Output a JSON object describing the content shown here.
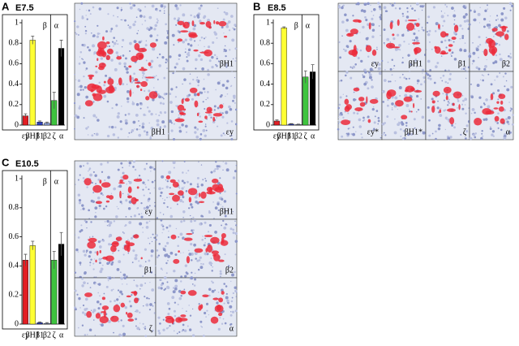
{
  "figure": {
    "panels": [
      {
        "label": "A",
        "stage": "E7.5",
        "image_labels": [
          "βH1",
          "βH1",
          "εy"
        ]
      },
      {
        "label": "B",
        "stage": "E8.5",
        "image_labels": [
          "εy",
          "βH1",
          "β1",
          "β2",
          "εy*",
          "βH1*",
          "ζ",
          "α"
        ]
      },
      {
        "label": "C",
        "stage": "E10.5",
        "image_labels": [
          "εy",
          "βH1",
          "β1",
          "β2",
          "ζ",
          "α"
        ]
      }
    ]
  },
  "chart_data": [
    {
      "type": "bar",
      "categories": [
        "εy",
        "βH1",
        "β1",
        "β2",
        "ζ",
        "α"
      ],
      "values": [
        0.09,
        0.83,
        0.03,
        0.02,
        0.24,
        0.75
      ],
      "errors": [
        0.02,
        0.04,
        0.01,
        0.01,
        0.08,
        0.08
      ],
      "colors": [
        "#e31e24",
        "#ffff33",
        "#2b3fbf",
        "#8fa5e0",
        "#3ec43e",
        "#000000"
      ],
      "annotations": [
        "β",
        "α"
      ],
      "ylim": [
        0,
        1
      ],
      "yticks": [
        0,
        0.2,
        0.4,
        0.6,
        0.8,
        1
      ]
    },
    {
      "type": "bar",
      "categories": [
        "εy",
        "βH1",
        "β1",
        "β2",
        "ζ",
        "α"
      ],
      "values": [
        0.04,
        0.95,
        0.01,
        0.005,
        0.47,
        0.52
      ],
      "errors": [
        0.01,
        0.01,
        0.005,
        0.005,
        0.06,
        0.07
      ],
      "colors": [
        "#e31e24",
        "#ffff33",
        "#2b3fbf",
        "#8fa5e0",
        "#3ec43e",
        "#000000"
      ],
      "annotations": [
        "β",
        "α"
      ],
      "ylim": [
        0,
        1
      ],
      "yticks": [
        0,
        0.2,
        0.4,
        0.6,
        0.8,
        1
      ]
    },
    {
      "type": "bar",
      "categories": [
        "εy",
        "βH1",
        "β1",
        "β2",
        "ζ",
        "α"
      ],
      "values": [
        0.44,
        0.54,
        0.01,
        0.005,
        0.44,
        0.55
      ],
      "errors": [
        0.04,
        0.03,
        0.005,
        0.005,
        0.06,
        0.08
      ],
      "colors": [
        "#e31e24",
        "#ffff33",
        "#2b3fbf",
        "#8fa5e0",
        "#3ec43e",
        "#000000"
      ],
      "annotations": [
        "β",
        "α"
      ],
      "ylim": [
        0,
        1
      ],
      "yticks": [
        0,
        0.2,
        0.4,
        0.6,
        0.8,
        1
      ]
    }
  ]
}
